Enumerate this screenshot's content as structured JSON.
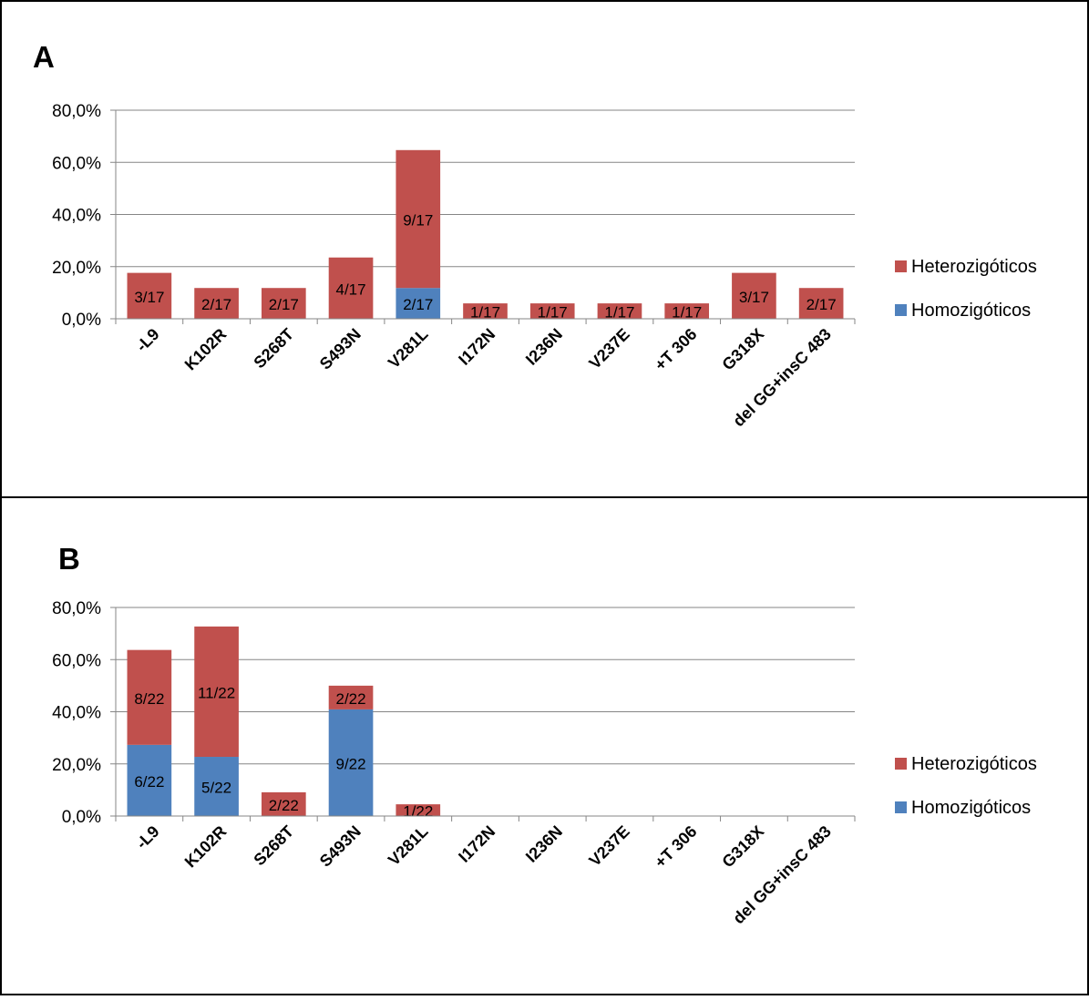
{
  "chart_data": [
    {
      "panel_label": "A",
      "type": "bar",
      "stacked": true,
      "categories": [
        "-L9",
        "K102R",
        "S268T",
        "S493N",
        "V281L",
        "I172N",
        "I236N",
        "V237E",
        "+T 306",
        "G318X",
        "del GG+insC 483"
      ],
      "series": [
        {
          "name": "Homozigóticos",
          "color": "#4f81bd",
          "values": [
            0,
            0,
            0,
            0,
            11.8,
            0,
            0,
            0,
            0,
            0,
            0
          ],
          "labels": [
            "",
            "",
            "",
            "",
            "2/17",
            "",
            "",
            "",
            "",
            "",
            ""
          ]
        },
        {
          "name": "Heterozigóticos",
          "color": "#c0504d",
          "values": [
            17.6,
            11.8,
            11.8,
            23.5,
            52.9,
            5.9,
            5.9,
            5.9,
            5.9,
            17.6,
            11.8
          ],
          "labels": [
            "3/17",
            "2/17",
            "2/17",
            "4/17",
            "9/17",
            "1/17",
            "1/17",
            "1/17",
            "1/17",
            "3/17",
            "2/17"
          ]
        }
      ],
      "ylim": [
        0,
        80
      ],
      "yticks": [
        0,
        20,
        40,
        60,
        80
      ],
      "ytick_labels": [
        "0,0%",
        "20,0%",
        "40,0%",
        "60,0%",
        "80,0%"
      ],
      "grid": true,
      "legend": "right"
    },
    {
      "panel_label": "B",
      "type": "bar",
      "stacked": true,
      "categories": [
        "-L9",
        "K102R",
        "S268T",
        "S493N",
        "V281L",
        "I172N",
        "I236N",
        "V237E",
        "+T 306",
        "G318X",
        "del GG+insC 483"
      ],
      "series": [
        {
          "name": "Homozigóticos",
          "color": "#4f81bd",
          "values": [
            27.3,
            22.7,
            0,
            40.9,
            0,
            0,
            0,
            0,
            0,
            0,
            0
          ],
          "labels": [
            "6/22",
            "5/22",
            "",
            "9/22",
            "",
            "",
            "",
            "",
            "",
            "",
            ""
          ]
        },
        {
          "name": "Heterozigóticos",
          "color": "#c0504d",
          "values": [
            36.4,
            50.0,
            9.1,
            9.1,
            4.5,
            0,
            0,
            0,
            0,
            0,
            0
          ],
          "labels": [
            "8/22",
            "11/22",
            "2/22",
            "2/22",
            "1/22",
            "",
            "",
            "",
            "",
            "",
            ""
          ]
        }
      ],
      "ylim": [
        0,
        80
      ],
      "yticks": [
        0,
        20,
        40,
        60,
        80
      ],
      "ytick_labels": [
        "0,0%",
        "20,0%",
        "40,0%",
        "60,0%",
        "80,0%"
      ],
      "grid": true,
      "legend": "right"
    }
  ]
}
